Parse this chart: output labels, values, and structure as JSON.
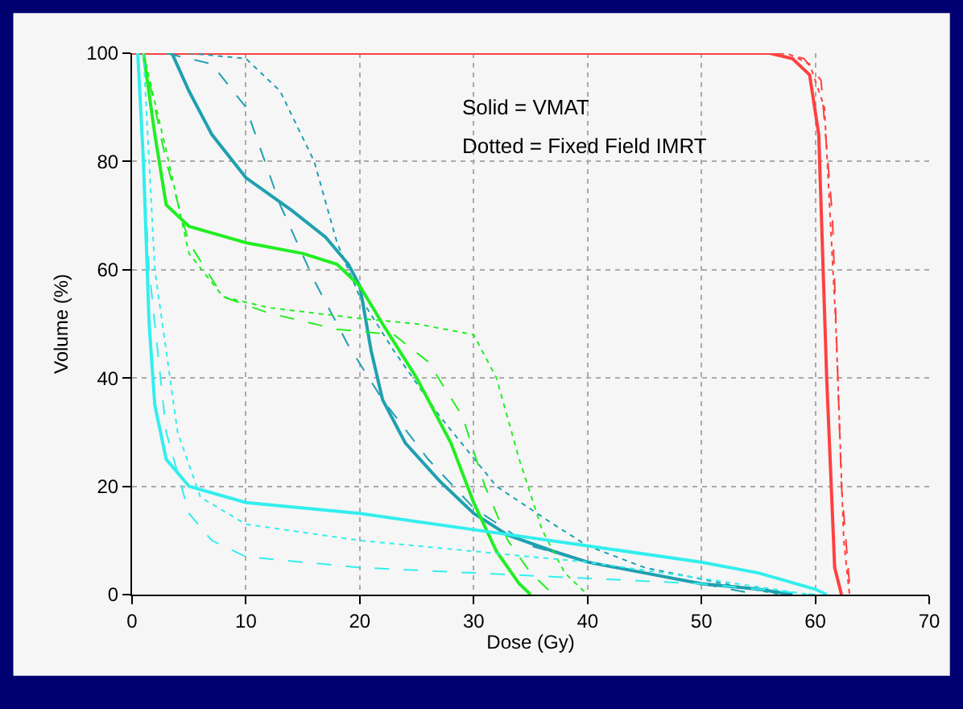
{
  "chart_data": {
    "type": "line",
    "xlabel": "Dose (Gy)",
    "ylabel": "Volume (%)",
    "xlim": [
      0,
      70
    ],
    "ylim": [
      0,
      100
    ],
    "xticks": [
      0,
      10,
      20,
      30,
      40,
      50,
      60,
      70
    ],
    "yticks": [
      0,
      20,
      40,
      60,
      80,
      100
    ],
    "grid": true,
    "legend": false,
    "marker": "none",
    "annotations": [
      "Solid = VMAT",
      "Dotted = Fixed Field IMRT"
    ],
    "series": [
      {
        "color": "#ff4040",
        "line_style": "solid",
        "x": [
          0,
          56,
          58,
          59.5,
          60.3,
          61,
          61.7,
          62.3
        ],
        "values": [
          100,
          100,
          99,
          96,
          85,
          40,
          5,
          0
        ]
      },
      {
        "color": "#ff4040",
        "line_style": "dashed",
        "x": [
          0,
          57,
          59,
          60.5,
          61.5,
          62.3,
          63,
          63.5
        ],
        "values": [
          100,
          100,
          99,
          95,
          70,
          20,
          2,
          0
        ]
      },
      {
        "color": "#ff4040",
        "line_style": "dotted",
        "x": [
          0,
          57.5,
          59.5,
          60.8,
          61.8,
          62.5,
          63
        ],
        "values": [
          100,
          100,
          98,
          90,
          50,
          10,
          0
        ]
      },
      {
        "color": "#1fa0b0",
        "line_style": "solid",
        "x": [
          3.5,
          5,
          7,
          10,
          14,
          17,
          19,
          20,
          21,
          22,
          24,
          27,
          30,
          33,
          37,
          40,
          45,
          50,
          55,
          58
        ],
        "values": [
          100,
          93,
          85,
          77,
          71,
          66,
          61,
          57,
          45,
          36,
          28,
          21,
          15,
          11,
          8,
          6,
          4,
          2,
          1,
          0
        ]
      },
      {
        "color": "#1fa0b0",
        "line_style": "dashed",
        "x": [
          3,
          7,
          10,
          13,
          16,
          19,
          22,
          26,
          30,
          35,
          40,
          45,
          50,
          55
        ],
        "values": [
          100,
          98,
          90,
          72,
          58,
          46,
          36,
          25,
          16,
          9,
          6,
          4,
          2,
          0
        ]
      },
      {
        "color": "#1fa0b0",
        "line_style": "dotted",
        "x": [
          5,
          10,
          13,
          16,
          18,
          20,
          23,
          27,
          32,
          37,
          40,
          45,
          52,
          57
        ],
        "values": [
          100,
          99,
          93,
          80,
          65,
          55,
          45,
          33,
          20,
          13,
          9,
          5,
          2,
          0
        ]
      },
      {
        "color": "#22ee22",
        "line_style": "solid",
        "x": [
          1,
          2,
          3,
          5,
          10,
          15,
          18,
          20,
          22,
          25,
          28,
          30,
          32,
          34,
          35
        ],
        "values": [
          100,
          85,
          72,
          68,
          65,
          63,
          61,
          57,
          50,
          40,
          28,
          17,
          8,
          2,
          0
        ]
      },
      {
        "color": "#22ee22",
        "line_style": "dashed",
        "x": [
          1,
          3,
          5,
          8,
          12,
          18,
          23,
          26,
          29,
          31,
          33,
          35,
          37
        ],
        "values": [
          100,
          80,
          65,
          55,
          52,
          49,
          48,
          43,
          33,
          20,
          10,
          4,
          0
        ]
      },
      {
        "color": "#22ee22",
        "line_style": "dotted",
        "x": [
          1,
          3,
          5,
          8,
          12,
          20,
          25,
          30,
          32,
          34,
          36,
          38,
          40
        ],
        "values": [
          100,
          82,
          63,
          55,
          53,
          51,
          50,
          48,
          40,
          25,
          12,
          4,
          0
        ]
      },
      {
        "color": "#33eeee",
        "line_style": "solid",
        "x": [
          0.5,
          1,
          1.5,
          2,
          3,
          5,
          10,
          20,
          30,
          40,
          50,
          55,
          60,
          61
        ],
        "values": [
          100,
          80,
          50,
          35,
          25,
          20,
          17,
          15,
          12,
          9,
          6,
          4,
          1,
          0
        ]
      },
      {
        "color": "#33eeee",
        "line_style": "dashed",
        "x": [
          0.5,
          1.5,
          3,
          5,
          7,
          10,
          20,
          30,
          40,
          50,
          60
        ],
        "values": [
          100,
          60,
          30,
          15,
          10,
          7,
          5,
          4,
          3,
          2,
          0
        ]
      },
      {
        "color": "#33eeee",
        "line_style": "dotted",
        "x": [
          1,
          2,
          4,
          6,
          10,
          20,
          30,
          40,
          50,
          59.5
        ],
        "values": [
          100,
          60,
          30,
          18,
          13,
          10,
          8,
          6,
          3,
          0
        ]
      }
    ]
  }
}
